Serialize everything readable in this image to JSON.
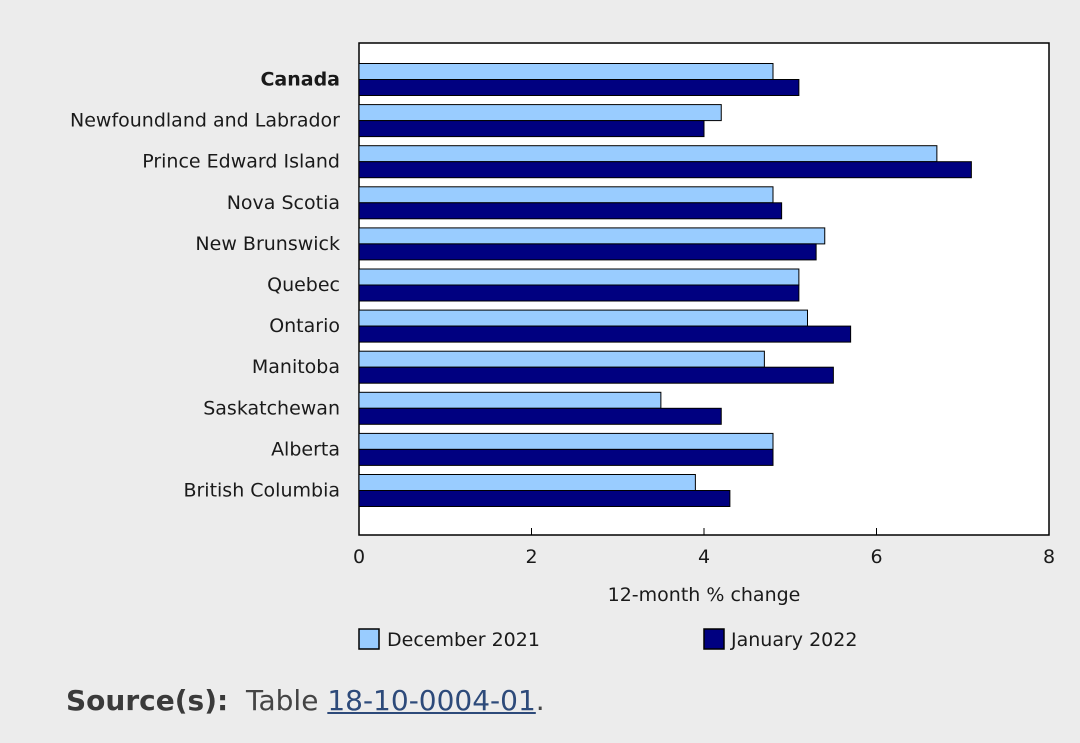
{
  "chart_data": {
    "type": "bar",
    "orientation": "horizontal",
    "categories": [
      "Canada",
      "Newfoundland and Labrador",
      "Prince Edward Island",
      "Nova Scotia",
      "New Brunswick",
      "Quebec",
      "Ontario",
      "Manitoba",
      "Saskatchewan",
      "Alberta",
      "British Columbia"
    ],
    "bold_categories": [
      "Canada"
    ],
    "series": [
      {
        "name": "December 2021",
        "color": "#99ccff",
        "values": [
          4.8,
          4.2,
          6.7,
          4.8,
          5.4,
          5.1,
          5.2,
          4.7,
          3.5,
          4.8,
          3.9
        ]
      },
      {
        "name": "January 2022",
        "color": "#000080",
        "values": [
          5.1,
          4.0,
          7.1,
          4.9,
          5.3,
          5.1,
          5.7,
          5.5,
          4.2,
          4.8,
          4.3
        ]
      }
    ],
    "xlabel": "12-month % change",
    "xlim": [
      0,
      8
    ],
    "xticks": [
      0,
      2,
      4,
      6,
      8
    ],
    "grid": false,
    "legend_position": "bottom"
  },
  "source": {
    "label": "Source(s):",
    "prefix": "Table",
    "link_text": "18-10-0004-01",
    "suffix": "."
  }
}
